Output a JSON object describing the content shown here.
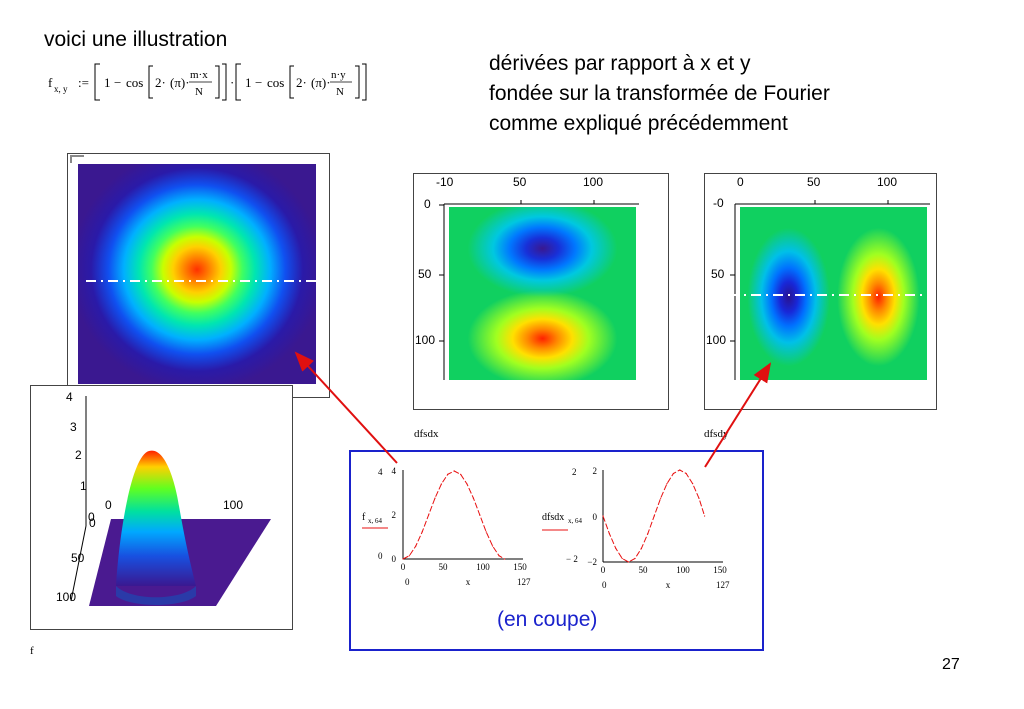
{
  "slide": {
    "intro": "voici une illustration",
    "description": [
      "dérivées par rapport à x et y",
      "fondée sur la transformée de Fourier",
      "comme expliqué précédemment"
    ],
    "page_number": "27",
    "cut_label": "(en coupe)"
  },
  "formula": {
    "lhs": "f",
    "subscript": "x, y",
    "assign": ":=",
    "one": "1",
    "minus": "−",
    "cos": "cos",
    "two": "2·",
    "pi": "(π)·",
    "num_x": "m·x",
    "num_y": "n·y",
    "den": "N",
    "times": "·"
  },
  "plots": {
    "f_label": "f",
    "dfsdx_label": "dfsdx",
    "dfsdy_label": "dfsdy",
    "surface_axis": {
      "z_ticks": [
        "4",
        "3",
        "2",
        "1",
        "0"
      ],
      "x_ticks": [
        "0",
        "100"
      ],
      "y_ticks": [
        "0",
        "50",
        "100"
      ]
    },
    "dfsdx_axis": {
      "top_ticks": [
        "0",
        "50",
        "100"
      ],
      "left_ticks": [
        "0",
        "50",
        "100"
      ],
      "overlap_label": "-10"
    },
    "dfsdy_axis": {
      "top_ticks": [
        "0",
        "50",
        "100"
      ],
      "left_ticks": [
        "0",
        "50",
        "100"
      ],
      "overlap_label": "-0"
    },
    "colors": {
      "frame_blue": "#1a22cc",
      "arrow_red": "#e01010",
      "curve_red": "#e81010",
      "dash_white": "#ffffff"
    }
  },
  "chart_data": [
    {
      "type": "line",
      "x": [
        0,
        8,
        16,
        24,
        32,
        40,
        48,
        56,
        64,
        72,
        80,
        88,
        96,
        104,
        112,
        120,
        127
      ],
      "series": [
        {
          "values": [
            0.0,
            0.15,
            0.59,
            1.23,
            2.0,
            2.77,
            3.41,
            3.85,
            4.0,
            3.85,
            3.41,
            2.77,
            2.0,
            1.23,
            0.59,
            0.15,
            0.0
          ]
        }
      ],
      "xlim": [
        0,
        150
      ],
      "ylim": [
        0,
        4
      ],
      "x_ticks": [
        "0",
        "50",
        "100",
        "150"
      ],
      "y_ticks": [
        "0",
        "2",
        "4"
      ],
      "xlabel": "x",
      "ylabel_main": "f",
      "ylabel_sub": "x, 64",
      "range_marks": {
        "y_top": "4",
        "y_bottom": "0",
        "x_left": "0",
        "x_right": "127"
      }
    },
    {
      "type": "line",
      "x": [
        0,
        8,
        16,
        24,
        32,
        40,
        48,
        56,
        64,
        72,
        80,
        88,
        96,
        104,
        112,
        120,
        127
      ],
      "series": [
        {
          "values": [
            0.0,
            -0.77,
            -1.41,
            -1.85,
            -2.0,
            -1.85,
            -1.41,
            -0.77,
            0.0,
            0.77,
            1.41,
            1.85,
            2.0,
            1.85,
            1.41,
            0.77,
            0.0
          ]
        }
      ],
      "xlim": [
        0,
        150
      ],
      "ylim": [
        -2,
        2
      ],
      "x_ticks": [
        "0",
        "50",
        "100",
        "150"
      ],
      "y_ticks": [
        "−2",
        "0",
        "2"
      ],
      "xlabel": "x",
      "ylabel_main": "dfsdx",
      "ylabel_sub": "x, 64",
      "range_marks": {
        "y_top": "2",
        "y_bottom": "− 2",
        "x_left": "0",
        "x_right": "127"
      }
    }
  ]
}
